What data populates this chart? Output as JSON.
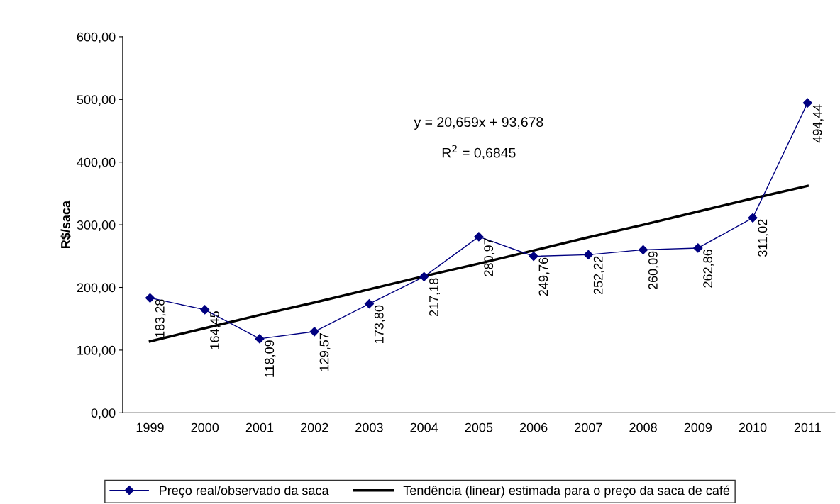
{
  "chart_data": {
    "type": "line",
    "ylabel": "R$/saca",
    "categories": [
      "1999",
      "2000",
      "2001",
      "2002",
      "2003",
      "2004",
      "2005",
      "2006",
      "2007",
      "2008",
      "2009",
      "2010",
      "2011"
    ],
    "series": [
      {
        "name": "Preço real/observado da saca",
        "color": "#000080",
        "marker": "diamond",
        "values": [
          183.28,
          164.45,
          118.09,
          129.57,
          173.8,
          217.18,
          280.97,
          249.76,
          252.22,
          260.09,
          262.86,
          311.02,
          494.44
        ],
        "value_labels": [
          "183,28",
          "164,45",
          "118,09",
          "129,57",
          "173,80",
          "217,18",
          "280,97",
          "249,76",
          "252,22",
          "260,09",
          "262,86",
          "311,02",
          "494,44"
        ]
      },
      {
        "name": "Tendência (linear) estimada para o preço da saca de café",
        "type": "line",
        "color": "#000000",
        "marker": "none",
        "values": [
          114,
          135,
          156,
          176,
          197,
          218,
          238,
          259,
          280,
          300,
          321,
          342,
          362
        ]
      }
    ],
    "ylim": [
      0,
      600
    ],
    "yticks": [
      {
        "value": 0,
        "label": "0,00"
      },
      {
        "value": 100,
        "label": "100,00"
      },
      {
        "value": 200,
        "label": "200,00"
      },
      {
        "value": 300,
        "label": "300,00"
      },
      {
        "value": 400,
        "label": "400,00"
      },
      {
        "value": 500,
        "label": "500,00"
      },
      {
        "value": 600,
        "label": "600,00"
      }
    ],
    "annotations": [
      "y = 20,659x + 93,678",
      "R$^{2}$ = 0,6845"
    ],
    "grid": false,
    "legend": "bottom"
  }
}
